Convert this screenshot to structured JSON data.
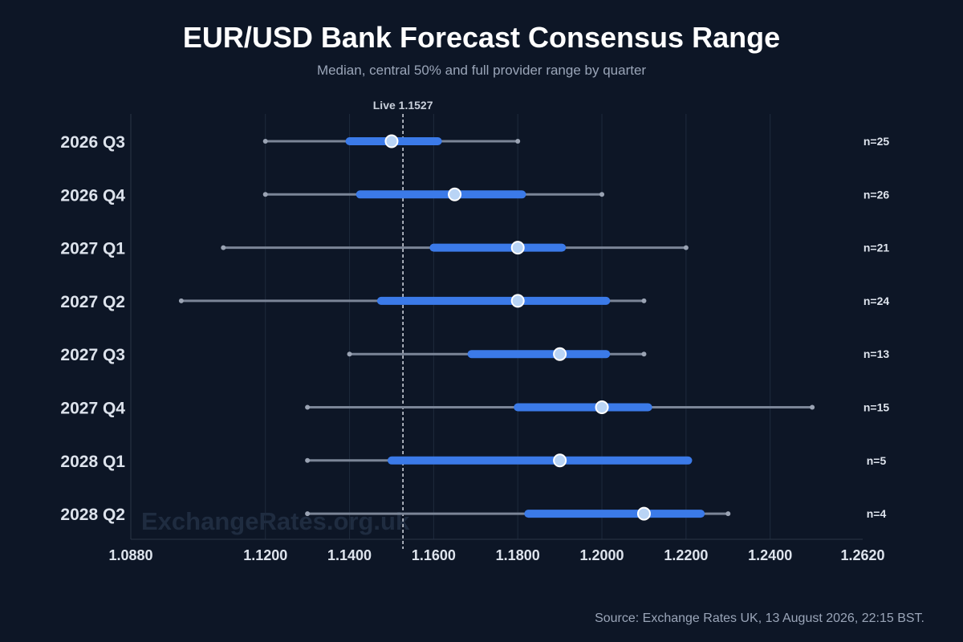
{
  "header": {
    "title": "EUR/USD Bank Forecast Consensus Range",
    "subtitle": "Median, central 50% and full provider range by quarter"
  },
  "footer": {
    "source": "Source: Exchange Rates UK, 13 August 2026, 22:15 BST."
  },
  "watermark": "ExchangeRates.org.uk",
  "colors": {
    "background": "#0d1626",
    "range_line": "#7b8597",
    "iqr_bar": "#3b7ae8",
    "median_fill": "#b9d4f5",
    "median_stroke": "#ffffff",
    "live_line": "#d8dde6",
    "category_label": "#dde3ec",
    "n_label": "#dde3ec",
    "tick_label": "#dde3ec",
    "grid": "#1e2a3c"
  },
  "chart_data": {
    "type": "range",
    "title": "EUR/USD Bank Forecast Consensus Range",
    "subtitle": "Median, central 50% and full provider range by quarter",
    "xlim": [
      1.088,
      1.262
    ],
    "x_ticks": [
      "1.0880",
      "1.1200",
      "1.1400",
      "1.1600",
      "1.1800",
      "1.2000",
      "1.2200",
      "1.2400",
      "1.2620"
    ],
    "x_tick_values": [
      1.088,
      1.12,
      1.14,
      1.16,
      1.18,
      1.2,
      1.22,
      1.24,
      1.262
    ],
    "grid": "vertical",
    "reference_line": {
      "label": "Live 1.1527",
      "value": 1.1527,
      "style": "dashed"
    },
    "categories": [
      "2026 Q3",
      "2026 Q4",
      "2027 Q1",
      "2027 Q2",
      "2027 Q3",
      "2027 Q4",
      "2028 Q1",
      "2028 Q2"
    ],
    "series": [
      {
        "category": "2026 Q3",
        "min": 1.12,
        "q1": 1.14,
        "median": 1.15,
        "q3": 1.161,
        "max": 1.18,
        "n_label": "n=25"
      },
      {
        "category": "2026 Q4",
        "min": 1.12,
        "q1": 1.1425,
        "median": 1.165,
        "q3": 1.181,
        "max": 1.2,
        "n_label": "n=26"
      },
      {
        "category": "2027 Q1",
        "min": 1.11,
        "q1": 1.16,
        "median": 1.18,
        "q3": 1.1905,
        "max": 1.22,
        "n_label": "n=21"
      },
      {
        "category": "2027 Q2",
        "min": 1.1,
        "q1": 1.1475,
        "median": 1.18,
        "q3": 1.201,
        "max": 1.21,
        "n_label": "n=24"
      },
      {
        "category": "2027 Q3",
        "min": 1.14,
        "q1": 1.169,
        "median": 1.19,
        "q3": 1.201,
        "max": 1.21,
        "n_label": "n=13"
      },
      {
        "category": "2027 Q4",
        "min": 1.13,
        "q1": 1.18,
        "median": 1.2,
        "q3": 1.211,
        "max": 1.25,
        "n_label": "n=15"
      },
      {
        "category": "2028 Q1",
        "min": 1.13,
        "q1": 1.15,
        "median": 1.19,
        "q3": 1.2205,
        "max": 1.2205,
        "n_label": "n=5"
      },
      {
        "category": "2028 Q2",
        "min": 1.13,
        "q1": 1.1825,
        "median": 1.21,
        "q3": 1.2235,
        "max": 1.23,
        "n_label": "n=4"
      }
    ]
  }
}
